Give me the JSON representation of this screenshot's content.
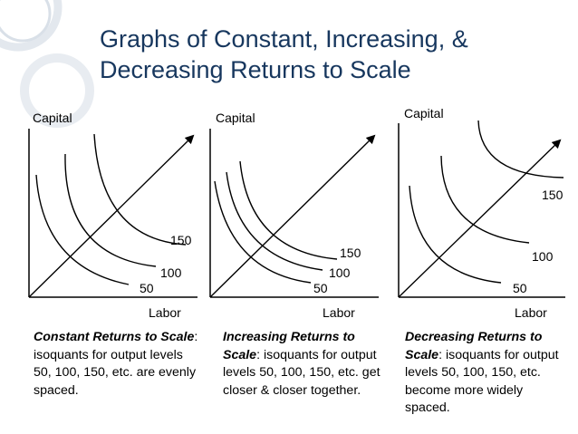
{
  "title": {
    "line1": "Graphs of Constant, Increasing, &",
    "line2": "Decreasing Returns to Scale"
  },
  "graphs": [
    {
      "id": "constant",
      "y_label": "Capital",
      "x_label": "Labor",
      "isoquant_labels": [
        "50",
        "100",
        "150"
      ],
      "caption": {
        "lead": "Constant Returns to Scale",
        "rest": ":  isoquants for output levels 50, 100, 150, etc. are evenly spaced."
      }
    },
    {
      "id": "increasing",
      "y_label": "Capital",
      "x_label": "Labor",
      "isoquant_labels": [
        "50",
        "100",
        "150"
      ],
      "caption": {
        "lead": "Increasing Returns to Scale",
        "rest": ":  isoquants for output levels 50, 100, 150, etc. get closer & closer together."
      }
    },
    {
      "id": "decreasing",
      "y_label": "Capital",
      "x_label": "Labor",
      "isoquant_labels": [
        "50",
        "100",
        "150"
      ],
      "caption": {
        "lead": "Decreasing Returns to Scale",
        "rest": ":  isoquants for output levels 50, 100, 150, etc. become more widely spaced."
      }
    }
  ],
  "colors": {
    "title": "#17375e",
    "lines": "#000000"
  }
}
